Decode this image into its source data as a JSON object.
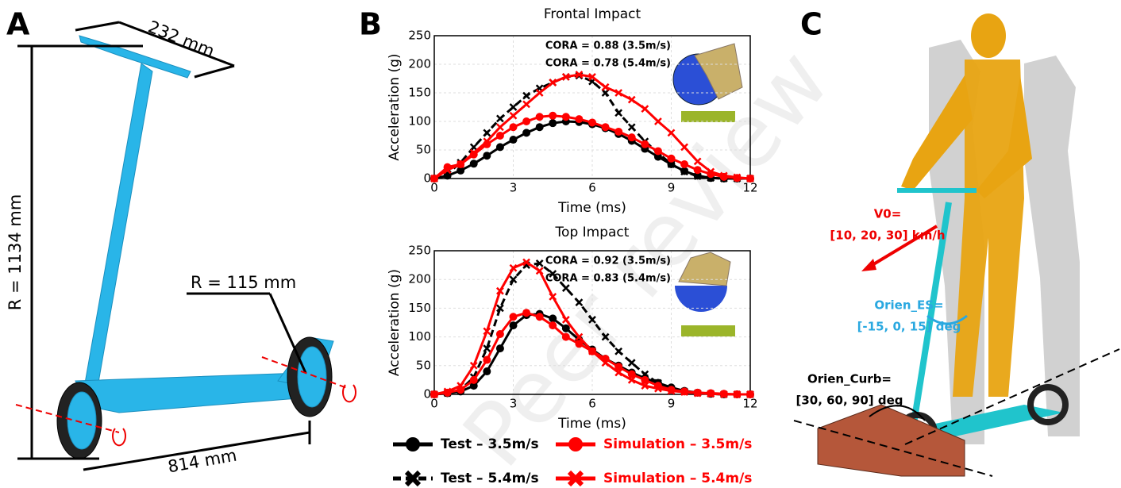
{
  "panels": {
    "a": {
      "label": "A",
      "width_label": "232 mm",
      "height_label": "R = 1134 mm",
      "wheel_label": "R = 115 mm",
      "base_label": "814 mm"
    },
    "b": {
      "label": "B"
    },
    "c": {
      "label": "C",
      "v0": "V0=",
      "v0_values": "[10, 20, 30] km/h",
      "orien_es": "Orien_ES=",
      "orien_es_values": "[-15, 0, 15] deg",
      "orien_curb": "Orien_Curb=",
      "orien_curb_values": "[30, 60, 90] deg"
    },
    "watermark": "Peer review"
  },
  "chart_data": [
    {
      "type": "line",
      "title": "Frontal Impact",
      "xlabel": "Time (ms)",
      "ylabel": "Acceleration (g)",
      "annotations": [
        "CORA = 0.88 (3.5m/s)",
        "CORA = 0.78 (5.4m/s)"
      ],
      "xlim": [
        0,
        12
      ],
      "xticks": [
        0,
        3,
        6,
        9,
        12
      ],
      "ylim": [
        0,
        250
      ],
      "yticks": [
        0,
        50,
        100,
        150,
        200,
        250
      ],
      "grid": true,
      "x": [
        0,
        0.5,
        1,
        1.5,
        2,
        2.5,
        3,
        3.5,
        4,
        4.5,
        5,
        5.5,
        6,
        6.5,
        7,
        7.5,
        8,
        8.5,
        9,
        9.5,
        10,
        10.5,
        11,
        11.5,
        12
      ],
      "series": [
        {
          "name": "Test – 3.5m/s",
          "color": "#000000",
          "linestyle": "solid",
          "marker": "circle",
          "values": [
            0,
            5,
            14,
            26,
            40,
            55,
            68,
            80,
            90,
            97,
            100,
            99,
            95,
            88,
            78,
            66,
            52,
            38,
            25,
            13,
            5,
            1,
            0,
            0,
            0
          ]
        },
        {
          "name": "Test – 5.4m/s",
          "color": "#000000",
          "linestyle": "dashed",
          "marker": "x",
          "values": [
            0,
            8,
            28,
            55,
            80,
            105,
            125,
            145,
            158,
            168,
            178,
            180,
            170,
            150,
            115,
            90,
            65,
            45,
            25,
            12,
            4,
            1,
            0,
            0,
            0
          ]
        },
        {
          "name": "Simulation – 3.5m/s",
          "color": "#ff0000",
          "linestyle": "solid",
          "marker": "circle",
          "values": [
            0,
            20,
            25,
            42,
            60,
            75,
            90,
            100,
            108,
            110,
            108,
            104,
            98,
            90,
            82,
            72,
            60,
            48,
            35,
            25,
            15,
            8,
            3,
            1,
            0
          ]
        },
        {
          "name": "Simulation – 5.4m/s",
          "color": "#ff0000",
          "linestyle": "solid",
          "marker": "x",
          "values": [
            0,
            15,
            25,
            45,
            65,
            90,
            110,
            130,
            150,
            168,
            178,
            182,
            178,
            160,
            150,
            138,
            122,
            100,
            80,
            55,
            30,
            12,
            5,
            2,
            0
          ]
        }
      ]
    },
    {
      "type": "line",
      "title": "Top Impact",
      "xlabel": "Time (ms)",
      "ylabel": "Acceleration (g)",
      "annotations": [
        "CORA = 0.92 (3.5m/s)",
        "CORA = 0.83 (5.4m/s)"
      ],
      "xlim": [
        0,
        12
      ],
      "xticks": [
        0,
        3,
        6,
        9,
        12
      ],
      "ylim": [
        0,
        250
      ],
      "yticks": [
        0,
        50,
        100,
        150,
        200,
        250
      ],
      "grid": true,
      "x": [
        0,
        0.5,
        1,
        1.5,
        2,
        2.5,
        3,
        3.5,
        4,
        4.5,
        5,
        5.5,
        6,
        6.5,
        7,
        7.5,
        8,
        8.5,
        9,
        9.5,
        10,
        10.5,
        11,
        11.5,
        12
      ],
      "series": [
        {
          "color": "#000000",
          "linestyle": "solid",
          "marker": "circle",
          "values": [
            0,
            2,
            5,
            15,
            40,
            80,
            120,
            138,
            140,
            132,
            115,
            95,
            78,
            62,
            50,
            38,
            28,
            20,
            12,
            6,
            3,
            1,
            0,
            0,
            0
          ]
        },
        {
          "color": "#000000",
          "linestyle": "dashed",
          "marker": "x",
          "values": [
            0,
            2,
            8,
            30,
            80,
            150,
            200,
            225,
            228,
            210,
            185,
            160,
            130,
            100,
            75,
            55,
            35,
            20,
            10,
            5,
            2,
            1,
            0,
            0,
            0
          ]
        },
        {
          "color": "#ff0000",
          "linestyle": "solid",
          "marker": "circle",
          "values": [
            0,
            3,
            8,
            25,
            60,
            105,
            135,
            142,
            135,
            120,
            100,
            88,
            75,
            62,
            48,
            35,
            25,
            15,
            8,
            5,
            3,
            2,
            1,
            0,
            0
          ]
        },
        {
          "color": "#ff0000",
          "linestyle": "solid",
          "marker": "x",
          "values": [
            0,
            5,
            15,
            50,
            110,
            180,
            220,
            230,
            215,
            170,
            130,
            100,
            75,
            55,
            38,
            25,
            15,
            10,
            6,
            4,
            2,
            1,
            0,
            0,
            0
          ]
        }
      ]
    }
  ]
}
